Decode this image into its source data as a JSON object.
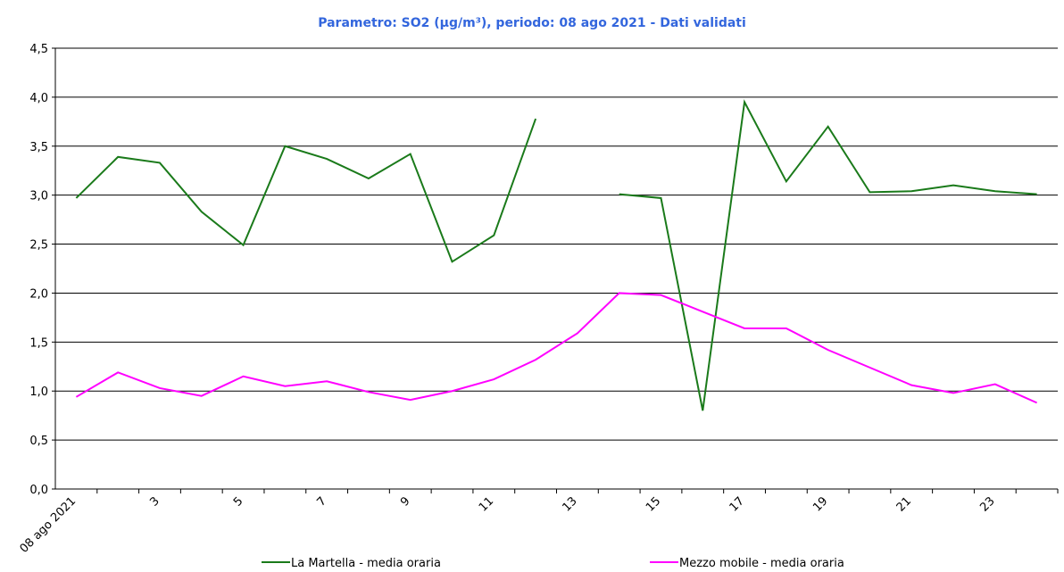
{
  "chart_data": {
    "type": "line",
    "title": "Parametro: SO2 (µg/m³), periodo: 08 ago 2021 - Dati validati",
    "categories": [
      "08 ago 2021",
      null,
      "3",
      null,
      "5",
      null,
      "7",
      null,
      "9",
      null,
      "11",
      null,
      "13",
      null,
      "15",
      null,
      "17",
      null,
      "19",
      null,
      "21",
      null,
      "23",
      null
    ],
    "series": [
      {
        "name": "La Martella - media oraria",
        "color": "#1a7a1a",
        "values": [
          2.97,
          3.39,
          3.33,
          2.83,
          2.49,
          3.5,
          3.37,
          3.17,
          3.42,
          2.32,
          2.59,
          3.78,
          null,
          3.01,
          2.97,
          0.8,
          3.95,
          3.14,
          3.7,
          3.03,
          3.04,
          3.1,
          3.04,
          3.01
        ]
      },
      {
        "name": "Mezzo mobile - media oraria",
        "color": "#ff00ff",
        "values": [
          0.94,
          1.19,
          1.03,
          0.95,
          1.15,
          1.05,
          1.1,
          0.99,
          0.91,
          1.0,
          1.12,
          1.32,
          1.59,
          2.0,
          1.98,
          1.81,
          1.64,
          1.64,
          1.42,
          1.24,
          1.06,
          0.98,
          1.07,
          0.88
        ]
      }
    ],
    "ylim": [
      0,
      4.5
    ],
    "yticks": [
      {
        "value": 0,
        "label": "0,0"
      },
      {
        "value": 0.5,
        "label": "0,5"
      },
      {
        "value": 1,
        "label": "1,0"
      },
      {
        "value": 1.5,
        "label": "1,5"
      },
      {
        "value": 2,
        "label": "2,0"
      },
      {
        "value": 2.5,
        "label": "2,5"
      },
      {
        "value": 3,
        "label": "3,0"
      },
      {
        "value": 3.5,
        "label": "3,5"
      },
      {
        "value": 4,
        "label": "4,0"
      },
      {
        "value": 4.5,
        "label": "4,5"
      }
    ],
    "grid": true
  }
}
